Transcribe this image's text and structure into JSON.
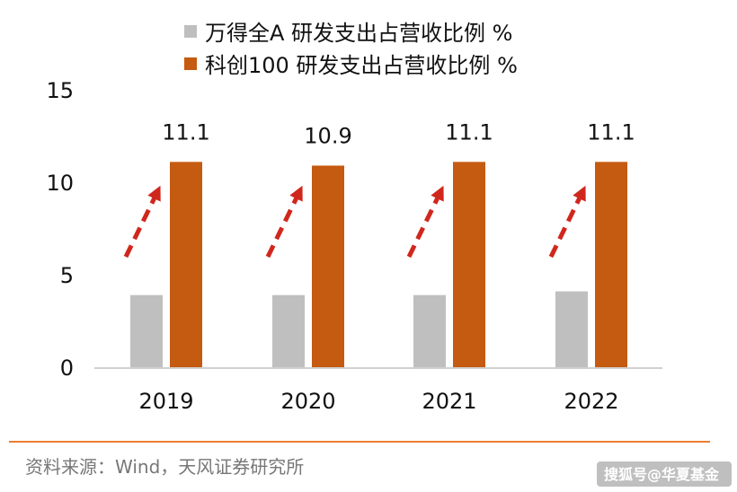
{
  "chart_data": {
    "type": "bar",
    "categories": [
      "2019",
      "2020",
      "2021",
      "2022"
    ],
    "series": [
      {
        "name": "万得全A 研发支出占营收比例 %",
        "values": [
          3.9,
          3.9,
          3.9,
          4.1
        ],
        "color": "#bfbfbf",
        "show_labels": false
      },
      {
        "name": "科创100 研发支出占营收比例 %",
        "values": [
          11.1,
          10.9,
          11.1,
          11.1
        ],
        "color": "#c55a11",
        "show_labels": true
      }
    ],
    "data_labels": [
      "11.1",
      "10.9",
      "11.1",
      "11.1"
    ],
    "y_ticks": [
      "0",
      "5",
      "10",
      "15"
    ],
    "ylim": [
      0,
      15
    ],
    "grid": false,
    "legend": "top",
    "arrow_color": "#d0271d",
    "axis_color": "#d0d0d0"
  },
  "footer": {
    "source": "资料来源：Wind，天风证券研究所",
    "rule_color": "#ed7d31"
  },
  "watermark": "搜狐号@华夏基金"
}
